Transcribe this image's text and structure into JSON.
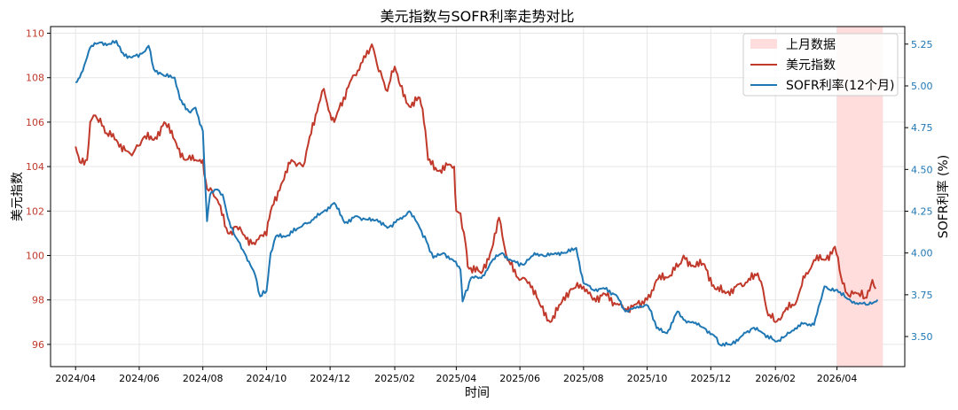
{
  "chart_data": {
    "type": "line",
    "title": "美元指数与SOFR利率走势对比",
    "xlabel": "时间",
    "ylabel_left": "美元指数",
    "ylabel_right": "SOFR利率 (%)",
    "x_ticks": [
      "2024/04",
      "2024/06",
      "2024/08",
      "2024/10",
      "2024/12",
      "2025/02",
      "2025/04",
      "2025/06",
      "2025/08",
      "2025/10",
      "2025/12",
      "2026/02",
      "2026/04"
    ],
    "x_range": [
      "2024-03-08",
      "2026-06-05"
    ],
    "ylim_left": [
      95.0,
      110.3
    ],
    "yticks_left": [
      96,
      98,
      100,
      102,
      104,
      106,
      108,
      110
    ],
    "ylim_right": [
      3.32,
      5.355
    ],
    "yticks_right": [
      "3.50",
      "3.75",
      "4.00",
      "4.25",
      "4.50",
      "4.75",
      "5.00",
      "5.25"
    ],
    "left_color": "#c0392b",
    "right_color": "#1f77b4",
    "grid": true,
    "legend_position": "top-right",
    "highlight_span": {
      "label": "上月数据",
      "start": "2026-04-01",
      "end": "2026-05-15",
      "color": "#ffdddd"
    },
    "series": [
      {
        "name": "美元指数",
        "axis": "left",
        "color": "#c0392b",
        "points": [
          [
            "2024-04-01",
            104.9
          ],
          [
            "2024-04-05",
            104.2
          ],
          [
            "2024-04-12",
            104.3
          ],
          [
            "2024-04-15",
            106.0
          ],
          [
            "2024-04-20",
            106.3
          ],
          [
            "2024-05-01",
            105.5
          ],
          [
            "2024-05-10",
            105.2
          ],
          [
            "2024-05-20",
            104.7
          ],
          [
            "2024-05-25",
            104.5
          ],
          [
            "2024-06-05",
            105.3
          ],
          [
            "2024-06-15",
            105.2
          ],
          [
            "2024-06-25",
            106.0
          ],
          [
            "2024-07-05",
            105.2
          ],
          [
            "2024-07-15",
            104.3
          ],
          [
            "2024-07-25",
            104.3
          ],
          [
            "2024-08-01",
            104.3
          ],
          [
            "2024-08-05",
            103.0
          ],
          [
            "2024-08-10",
            102.9
          ],
          [
            "2024-08-15",
            102.5
          ],
          [
            "2024-08-25",
            101.0
          ],
          [
            "2024-09-01",
            101.3
          ],
          [
            "2024-09-10",
            100.9
          ],
          [
            "2024-09-20",
            100.5
          ],
          [
            "2024-09-25",
            100.9
          ],
          [
            "2024-10-01",
            100.9
          ],
          [
            "2024-10-05",
            102.0
          ],
          [
            "2024-10-15",
            103.2
          ],
          [
            "2024-10-25",
            104.3
          ],
          [
            "2024-11-05",
            104.0
          ],
          [
            "2024-11-10",
            105.0
          ],
          [
            "2024-11-20",
            106.8
          ],
          [
            "2024-11-25",
            107.5
          ],
          [
            "2024-12-01",
            106.4
          ],
          [
            "2024-12-05",
            106.0
          ],
          [
            "2024-12-20",
            107.8
          ],
          [
            "2025-01-01",
            108.7
          ],
          [
            "2025-01-10",
            109.5
          ],
          [
            "2025-01-15",
            108.6
          ],
          [
            "2025-01-20",
            108.0
          ],
          [
            "2025-01-25",
            107.4
          ],
          [
            "2025-02-01",
            108.5
          ],
          [
            "2025-02-05",
            107.8
          ],
          [
            "2025-02-15",
            106.7
          ],
          [
            "2025-02-25",
            107.1
          ],
          [
            "2025-03-01",
            106.0
          ],
          [
            "2025-03-05",
            104.3
          ],
          [
            "2025-03-15",
            103.8
          ],
          [
            "2025-03-25",
            104.1
          ],
          [
            "2025-03-30",
            104.0
          ],
          [
            "2025-04-01",
            102.0
          ],
          [
            "2025-04-05",
            101.9
          ],
          [
            "2025-04-10",
            100.5
          ],
          [
            "2025-04-12",
            99.5
          ],
          [
            "2025-04-25",
            99.2
          ],
          [
            "2025-05-05",
            100.3
          ],
          [
            "2025-05-12",
            101.7
          ],
          [
            "2025-05-20",
            99.8
          ],
          [
            "2025-05-30",
            99.0
          ],
          [
            "2025-06-10",
            98.8
          ],
          [
            "2025-06-20",
            97.8
          ],
          [
            "2025-06-30",
            97.0
          ],
          [
            "2025-07-10",
            97.8
          ],
          [
            "2025-07-20",
            98.5
          ],
          [
            "2025-08-01",
            98.6
          ],
          [
            "2025-08-10",
            98.0
          ],
          [
            "2025-08-20",
            98.3
          ],
          [
            "2025-09-01",
            97.8
          ],
          [
            "2025-09-10",
            97.6
          ],
          [
            "2025-09-20",
            97.8
          ],
          [
            "2025-10-01",
            98.0
          ],
          [
            "2025-10-10",
            98.9
          ],
          [
            "2025-10-20",
            99.0
          ],
          [
            "2025-11-01",
            99.6
          ],
          [
            "2025-11-05",
            100.0
          ],
          [
            "2025-11-15",
            99.5
          ],
          [
            "2025-11-25",
            99.6
          ],
          [
            "2025-12-05",
            98.5
          ],
          [
            "2025-12-15",
            98.3
          ],
          [
            "2025-12-25",
            98.6
          ],
          [
            "2026-01-05",
            98.8
          ],
          [
            "2026-01-15",
            99.2
          ],
          [
            "2026-01-20",
            98.5
          ],
          [
            "2026-01-25",
            97.3
          ],
          [
            "2026-02-01",
            97.0
          ],
          [
            "2026-02-10",
            97.5
          ],
          [
            "2026-02-20",
            97.8
          ],
          [
            "2026-02-25",
            98.5
          ],
          [
            "2026-03-01",
            99.0
          ],
          [
            "2026-03-10",
            99.8
          ],
          [
            "2026-03-20",
            99.8
          ],
          [
            "2026-03-30",
            100.4
          ],
          [
            "2026-04-05",
            99.0
          ],
          [
            "2026-04-12",
            98.2
          ],
          [
            "2026-04-20",
            98.3
          ],
          [
            "2026-04-28",
            98.1
          ],
          [
            "2026-05-05",
            98.9
          ],
          [
            "2026-05-08",
            98.5
          ]
        ]
      },
      {
        "name": "SOFR利率(12个月)",
        "axis": "right",
        "color": "#1f77b4",
        "points": [
          [
            "2024-04-01",
            5.02
          ],
          [
            "2024-04-05",
            5.05
          ],
          [
            "2024-04-15",
            5.23
          ],
          [
            "2024-04-25",
            5.26
          ],
          [
            "2024-05-05",
            5.25
          ],
          [
            "2024-05-10",
            5.27
          ],
          [
            "2024-05-15",
            5.2
          ],
          [
            "2024-05-25",
            5.17
          ],
          [
            "2024-06-05",
            5.2
          ],
          [
            "2024-06-10",
            5.24
          ],
          [
            "2024-06-15",
            5.1
          ],
          [
            "2024-06-25",
            5.06
          ],
          [
            "2024-07-05",
            5.05
          ],
          [
            "2024-07-10",
            4.92
          ],
          [
            "2024-07-20",
            4.84
          ],
          [
            "2024-07-25",
            4.87
          ],
          [
            "2024-08-01",
            4.73
          ],
          [
            "2024-08-05",
            4.19
          ],
          [
            "2024-08-08",
            4.35
          ],
          [
            "2024-08-15",
            4.38
          ],
          [
            "2024-08-20",
            4.35
          ],
          [
            "2024-08-25",
            4.21
          ],
          [
            "2024-09-01",
            4.1
          ],
          [
            "2024-09-10",
            4.0
          ],
          [
            "2024-09-20",
            3.87
          ],
          [
            "2024-09-25",
            3.74
          ],
          [
            "2024-10-01",
            3.77
          ],
          [
            "2024-10-05",
            4.0
          ],
          [
            "2024-10-10",
            4.1
          ],
          [
            "2024-10-20",
            4.1
          ],
          [
            "2024-11-01",
            4.15
          ],
          [
            "2024-11-15",
            4.2
          ],
          [
            "2024-11-25",
            4.25
          ],
          [
            "2024-12-05",
            4.3
          ],
          [
            "2024-12-15",
            4.18
          ],
          [
            "2024-12-25",
            4.22
          ],
          [
            "2025-01-05",
            4.2
          ],
          [
            "2025-01-15",
            4.2
          ],
          [
            "2025-01-25",
            4.15
          ],
          [
            "2025-02-05",
            4.2
          ],
          [
            "2025-02-15",
            4.25
          ],
          [
            "2025-02-25",
            4.15
          ],
          [
            "2025-03-05",
            4.05
          ],
          [
            "2025-03-10",
            3.97
          ],
          [
            "2025-03-20",
            4.0
          ],
          [
            "2025-03-30",
            3.95
          ],
          [
            "2025-04-05",
            3.9
          ],
          [
            "2025-04-07",
            3.71
          ],
          [
            "2025-04-15",
            3.85
          ],
          [
            "2025-04-25",
            3.85
          ],
          [
            "2025-05-05",
            3.95
          ],
          [
            "2025-05-15",
            4.0
          ],
          [
            "2025-05-25",
            3.95
          ],
          [
            "2025-06-05",
            3.93
          ],
          [
            "2025-06-15",
            4.0
          ],
          [
            "2025-06-25",
            3.98
          ],
          [
            "2025-07-05",
            4.0
          ],
          [
            "2025-07-15",
            4.0
          ],
          [
            "2025-07-25",
            4.03
          ],
          [
            "2025-08-01",
            3.82
          ],
          [
            "2025-08-10",
            3.78
          ],
          [
            "2025-08-20",
            3.79
          ],
          [
            "2025-09-01",
            3.75
          ],
          [
            "2025-09-10",
            3.65
          ],
          [
            "2025-09-20",
            3.67
          ],
          [
            "2025-09-30",
            3.69
          ],
          [
            "2025-10-05",
            3.65
          ],
          [
            "2025-10-10",
            3.55
          ],
          [
            "2025-10-20",
            3.52
          ],
          [
            "2025-10-30",
            3.65
          ],
          [
            "2025-11-05",
            3.6
          ],
          [
            "2025-11-15",
            3.58
          ],
          [
            "2025-11-25",
            3.55
          ],
          [
            "2025-12-05",
            3.5
          ],
          [
            "2025-12-10",
            3.45
          ],
          [
            "2025-12-20",
            3.45
          ],
          [
            "2025-12-30",
            3.5
          ],
          [
            "2026-01-10",
            3.55
          ],
          [
            "2026-01-20",
            3.52
          ],
          [
            "2026-02-01",
            3.47
          ],
          [
            "2026-02-10",
            3.5
          ],
          [
            "2026-02-20",
            3.55
          ],
          [
            "2026-03-01",
            3.58
          ],
          [
            "2026-03-10",
            3.57
          ],
          [
            "2026-03-20",
            3.8
          ],
          [
            "2026-03-25",
            3.78
          ],
          [
            "2026-04-01",
            3.78
          ],
          [
            "2026-04-10",
            3.73
          ],
          [
            "2026-04-20",
            3.7
          ],
          [
            "2026-04-30",
            3.69
          ],
          [
            "2026-05-10",
            3.72
          ]
        ]
      }
    ]
  }
}
